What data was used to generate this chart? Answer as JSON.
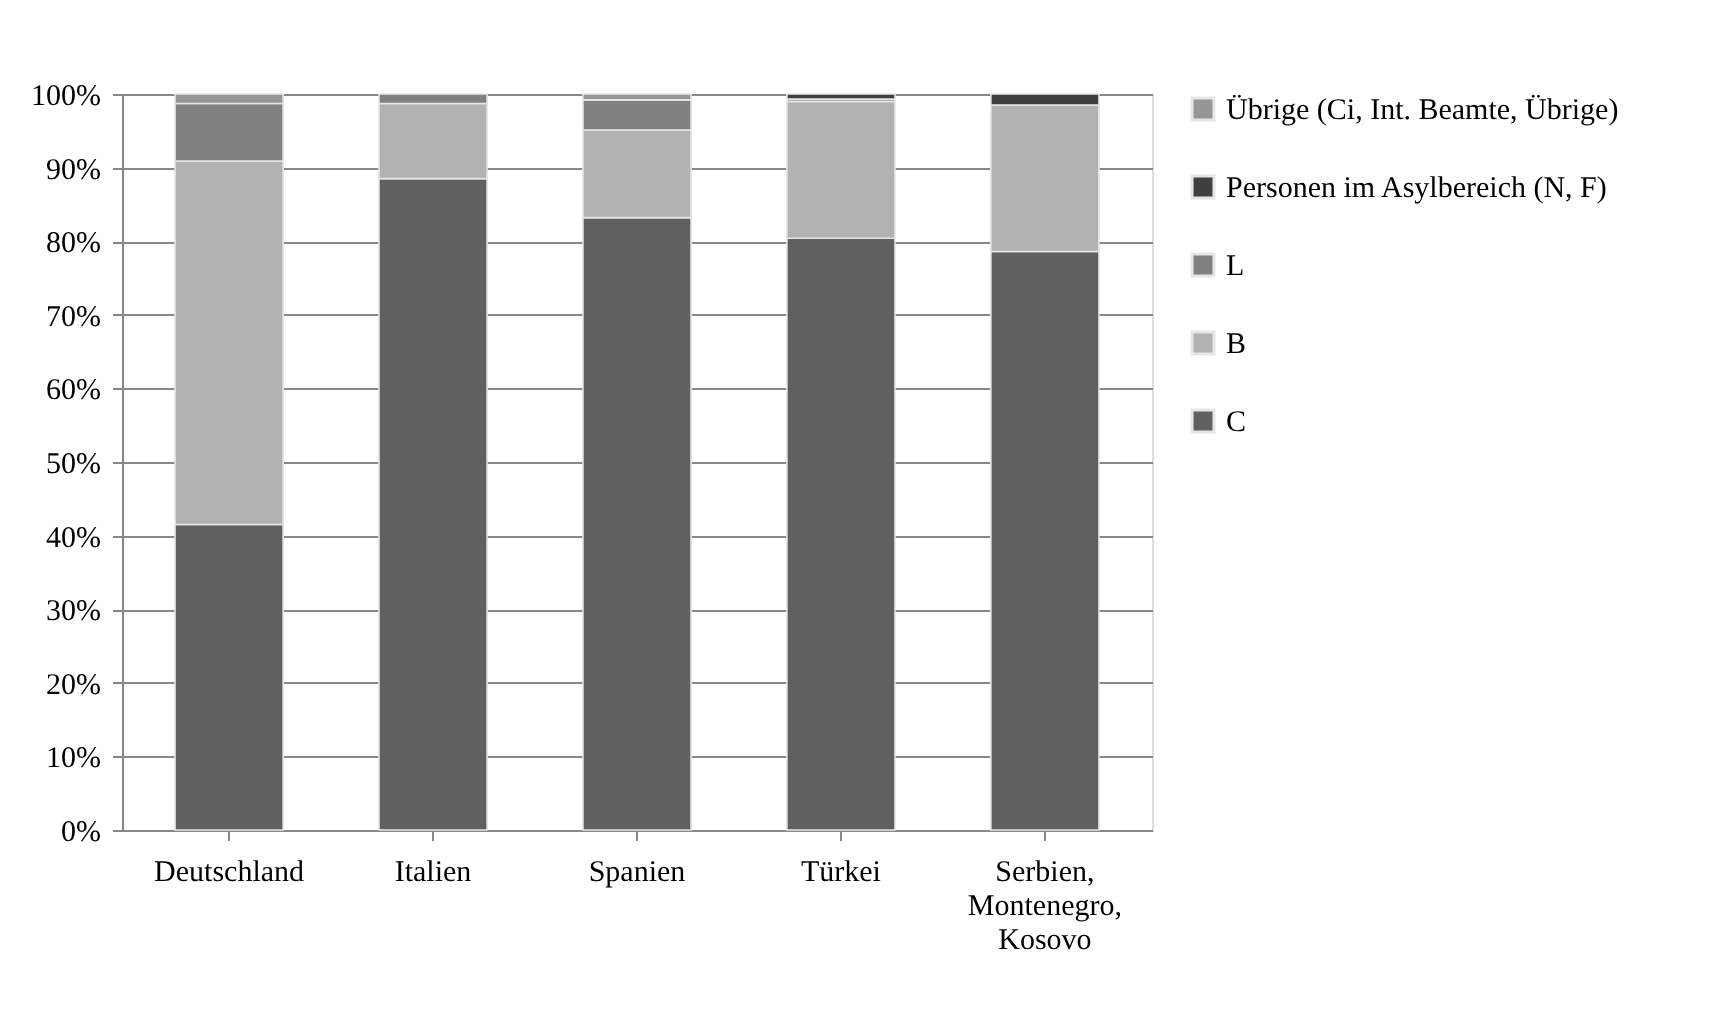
{
  "chart_data": {
    "type": "bar",
    "stacked": true,
    "categories": [
      "Deutschland",
      "Italien",
      "Spanien",
      "Türkei",
      "Serbien, Montenegro, Kosovo"
    ],
    "series": [
      {
        "name": "C",
        "color": "#606060",
        "values": [
          41.5,
          88.5,
          83.2,
          80.4,
          78.6
        ]
      },
      {
        "name": "B",
        "color": "#b2b2b2",
        "values": [
          49.4,
          10.2,
          11.9,
          18.6,
          19.9
        ]
      },
      {
        "name": "L",
        "color": "#808080",
        "values": [
          7.8,
          1.3,
          4.1,
          0.3,
          null
        ]
      },
      {
        "name": "Personen im Asylbereich (N, F)",
        "color": "#404040",
        "values": [
          null,
          null,
          null,
          0.7,
          1.5
        ]
      },
      {
        "name": "Übrige (Ci, Int. Beamte, Übrige)",
        "color": "#969696",
        "values": [
          1.3,
          null,
          0.8,
          null,
          null
        ]
      }
    ],
    "ylim": [
      0,
      100
    ],
    "yticks": [
      {
        "value": 0,
        "label": "0%"
      },
      {
        "value": 10,
        "label": "10%"
      },
      {
        "value": 20,
        "label": "20%"
      },
      {
        "value": 30,
        "label": "30%"
      },
      {
        "value": 40,
        "label": "40%"
      },
      {
        "value": 50,
        "label": "50%"
      },
      {
        "value": 60,
        "label": "60%"
      },
      {
        "value": 70,
        "label": "70%"
      },
      {
        "value": 80,
        "label": "80%"
      },
      {
        "value": 90,
        "label": "90%"
      },
      {
        "value": 100,
        "label": "100%"
      }
    ],
    "grid": "y",
    "legend": "right"
  }
}
